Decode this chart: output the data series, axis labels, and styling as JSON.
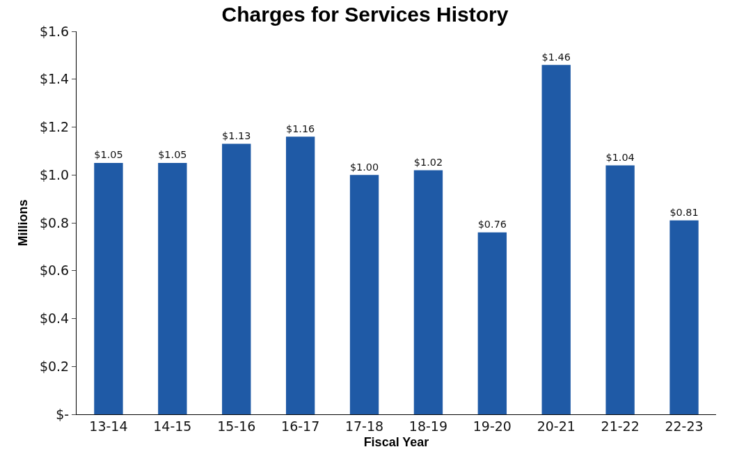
{
  "chart_data": {
    "type": "bar",
    "title": "Charges for Services History",
    "xlabel": "Fiscal Year",
    "ylabel": "Millions",
    "categories": [
      "13-14",
      "14-15",
      "15-16",
      "16-17",
      "17-18",
      "18-19",
      "19-20",
      "20-21",
      "21-22",
      "22-23"
    ],
    "values": [
      1.05,
      1.05,
      1.13,
      1.16,
      1.0,
      1.02,
      0.76,
      1.46,
      1.04,
      0.81
    ],
    "value_labels": [
      "$1.05",
      "$1.05",
      "$1.13",
      "$1.16",
      "$1.00",
      "$1.02",
      "$0.76",
      "$1.46",
      "$1.04",
      "$0.81"
    ],
    "color": "#1f5aa6",
    "ylim": [
      0,
      1.6
    ],
    "yticks": [
      {
        "value": 0,
        "label": "$-"
      },
      {
        "value": 0.2,
        "label": "$0.2"
      },
      {
        "value": 0.4,
        "label": "$0.4"
      },
      {
        "value": 0.6,
        "label": "$0.6"
      },
      {
        "value": 0.8,
        "label": "$0.8"
      },
      {
        "value": 1.0,
        "label": "$1.0"
      },
      {
        "value": 1.2,
        "label": "$1.2"
      },
      {
        "value": 1.4,
        "label": "$1.4"
      },
      {
        "value": 1.6,
        "label": "$1.6"
      }
    ],
    "grid": false
  }
}
